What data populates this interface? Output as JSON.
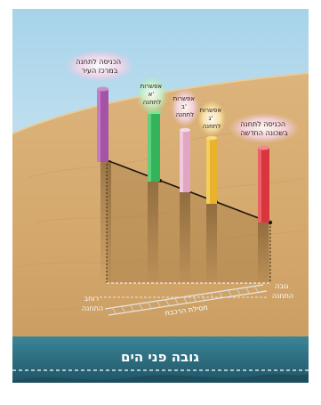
{
  "labels": {
    "entrance_center": [
      "הכניסה לתחנה",
      "במרכז העיר"
    ],
    "option_a": [
      "אפשרות",
      "א'",
      "לתחנה"
    ],
    "option_b": [
      "אפשרות",
      "ב'",
      "לתחנה"
    ],
    "option_c": [
      "אפשרות",
      "ג'",
      "לתחנה"
    ],
    "entrance_new": [
      "הכניסה לתחנה",
      "בשכונה החדשה"
    ],
    "station_length": [
      "רוחב",
      "התחנה"
    ],
    "station_depth": [
      "גובה",
      "התחנה"
    ],
    "track": "מסילת הרכבת",
    "sea_level": "גובה פני הים"
  },
  "colors": {
    "sky_top": "#a7d3ea",
    "sky_bottom": "#e6f2f8",
    "sand": "#d9b27a",
    "sea": "#2f6f82",
    "pillar_purple": "#a453a6",
    "pillar_green": "#35b35a",
    "pillar_pink": "#e2a6c5",
    "pillar_yellow": "#e8b22c",
    "pillar_red": "#d8363c"
  }
}
